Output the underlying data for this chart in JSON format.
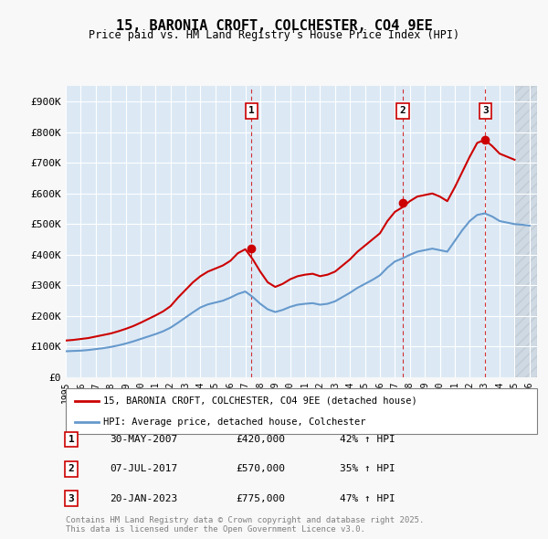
{
  "title": "15, BARONIA CROFT, COLCHESTER, CO4 9EE",
  "subtitle": "Price paid vs. HM Land Registry's House Price Index (HPI)",
  "xlabel": "",
  "ylabel": "",
  "ylim": [
    0,
    950000
  ],
  "yticks": [
    0,
    100000,
    200000,
    300000,
    400000,
    500000,
    600000,
    700000,
    800000,
    900000
  ],
  "ytick_labels": [
    "£0",
    "£100K",
    "£200K",
    "£300K",
    "£400K",
    "£500K",
    "£600K",
    "£700K",
    "£800K",
    "£900K"
  ],
  "xlim_start": 1995.0,
  "xlim_end": 2026.5,
  "background_color": "#dce9f5",
  "plot_bg_color": "#dce9f5",
  "grid_color": "#ffffff",
  "red_line_color": "#cc0000",
  "blue_line_color": "#6699cc",
  "sale_dates": [
    2007.41,
    2017.52,
    2023.05
  ],
  "sale_prices": [
    420000,
    570000,
    775000
  ],
  "sale_labels": [
    "1",
    "2",
    "3"
  ],
  "sale_date_strs": [
    "30-MAY-2007",
    "07-JUL-2017",
    "20-JAN-2023"
  ],
  "sale_price_strs": [
    "£420,000",
    "£570,000",
    "£775,000"
  ],
  "sale_hpi_strs": [
    "42% ↑ HPI",
    "35% ↑ HPI",
    "47% ↑ HPI"
  ],
  "legend_line1": "15, BARONIA CROFT, COLCHESTER, CO4 9EE (detached house)",
  "legend_line2": "HPI: Average price, detached house, Colchester",
  "footer": "Contains HM Land Registry data © Crown copyright and database right 2025.\nThis data is licensed under the Open Government Licence v3.0.",
  "red_hpi_x": [
    1995.0,
    1995.5,
    1996.0,
    1996.5,
    1997.0,
    1997.5,
    1998.0,
    1998.5,
    1999.0,
    1999.5,
    2000.0,
    2000.5,
    2001.0,
    2001.5,
    2002.0,
    2002.5,
    2003.0,
    2003.5,
    2004.0,
    2004.5,
    2005.0,
    2005.5,
    2006.0,
    2006.5,
    2007.0,
    2007.5,
    2008.0,
    2008.5,
    2009.0,
    2009.5,
    2010.0,
    2010.5,
    2011.0,
    2011.5,
    2012.0,
    2012.5,
    2013.0,
    2013.5,
    2014.0,
    2014.5,
    2015.0,
    2015.5,
    2016.0,
    2016.5,
    2017.0,
    2017.5,
    2018.0,
    2018.5,
    2019.0,
    2019.5,
    2020.0,
    2020.5,
    2021.0,
    2021.5,
    2022.0,
    2022.5,
    2023.0,
    2023.5,
    2024.0,
    2024.5,
    2025.0
  ],
  "red_hpi_y": [
    120000,
    122000,
    125000,
    128000,
    133000,
    138000,
    143000,
    150000,
    158000,
    167000,
    178000,
    190000,
    202000,
    215000,
    232000,
    260000,
    285000,
    310000,
    330000,
    345000,
    355000,
    365000,
    380000,
    405000,
    418000,
    385000,
    345000,
    310000,
    295000,
    305000,
    320000,
    330000,
    335000,
    338000,
    330000,
    335000,
    345000,
    365000,
    385000,
    410000,
    430000,
    450000,
    470000,
    510000,
    540000,
    555000,
    575000,
    590000,
    595000,
    600000,
    590000,
    575000,
    620000,
    670000,
    720000,
    765000,
    775000,
    755000,
    730000,
    720000,
    710000
  ],
  "blue_hpi_x": [
    1995.0,
    1995.5,
    1996.0,
    1996.5,
    1997.0,
    1997.5,
    1998.0,
    1998.5,
    1999.0,
    1999.5,
    2000.0,
    2000.5,
    2001.0,
    2001.5,
    2002.0,
    2002.5,
    2003.0,
    2003.5,
    2004.0,
    2004.5,
    2005.0,
    2005.5,
    2006.0,
    2006.5,
    2007.0,
    2007.5,
    2008.0,
    2008.5,
    2009.0,
    2009.5,
    2010.0,
    2010.5,
    2011.0,
    2011.5,
    2012.0,
    2012.5,
    2013.0,
    2013.5,
    2014.0,
    2014.5,
    2015.0,
    2015.5,
    2016.0,
    2016.5,
    2017.0,
    2017.5,
    2018.0,
    2018.5,
    2019.0,
    2019.5,
    2020.0,
    2020.5,
    2021.0,
    2021.5,
    2022.0,
    2022.5,
    2023.0,
    2023.5,
    2024.0,
    2024.5,
    2025.0,
    2025.5,
    2026.0
  ],
  "blue_hpi_y": [
    85000,
    86000,
    87000,
    89000,
    92000,
    95000,
    99000,
    104000,
    110000,
    117000,
    125000,
    133000,
    141000,
    150000,
    162000,
    178000,
    195000,
    212000,
    228000,
    238000,
    244000,
    250000,
    260000,
    272000,
    280000,
    262000,
    240000,
    222000,
    213000,
    220000,
    230000,
    237000,
    240000,
    242000,
    237000,
    240000,
    248000,
    262000,
    276000,
    292000,
    305000,
    318000,
    333000,
    358000,
    378000,
    388000,
    400000,
    410000,
    415000,
    420000,
    415000,
    410000,
    445000,
    480000,
    510000,
    530000,
    535000,
    525000,
    510000,
    505000,
    500000,
    498000,
    495000
  ]
}
